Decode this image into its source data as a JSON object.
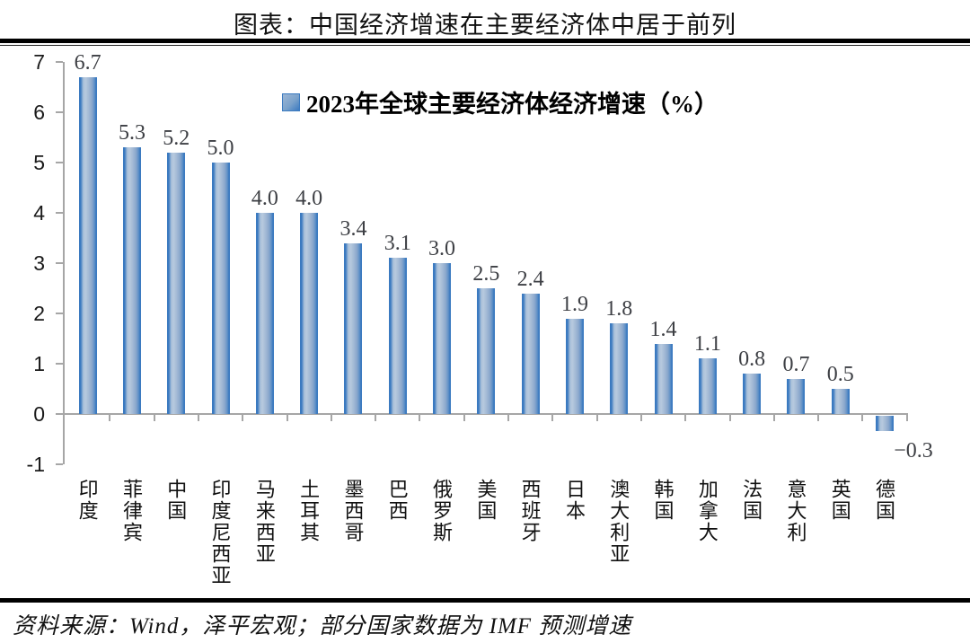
{
  "page": {
    "title": "图表：中国经济增速在主要经济体中居于前列",
    "footer": "资料来源：Wind，泽平宏观；部分国家数据为 IMF 预测增速"
  },
  "chart_data": {
    "type": "bar",
    "title": "图表：中国经济增速在主要经济体中居于前列",
    "legend": "2023年全球主要经济体经济增速（%）",
    "legend_position": "top-center",
    "categories": [
      "印度",
      "菲律宾",
      "中国",
      "印度尼西亚",
      "马来西亚",
      "土耳其",
      "墨西哥",
      "巴西",
      "俄罗斯",
      "美国",
      "西班牙",
      "日本",
      "澳大利亚",
      "韩国",
      "加拿大",
      "法国",
      "意大利",
      "英国",
      "德国"
    ],
    "values": [
      6.7,
      5.3,
      5.2,
      5.0,
      4.0,
      4.0,
      3.4,
      3.1,
      3.0,
      2.5,
      2.4,
      1.9,
      1.8,
      1.4,
      1.1,
      0.8,
      0.7,
      0.5,
      -0.3
    ],
    "value_labels": [
      "6.7",
      "5.3",
      "5.2",
      "5.0",
      "4.0",
      "4.0",
      "3.4",
      "3.1",
      "3.0",
      "2.5",
      "2.4",
      "1.9",
      "1.8",
      "1.4",
      "1.1",
      "0.8",
      "0.7",
      "0.5",
      "−0.3"
    ],
    "xlabel": "",
    "ylabel": "",
    "ylim": [
      -1,
      7
    ],
    "yticks": [
      7,
      6,
      5,
      4,
      3,
      2,
      1,
      0,
      -1
    ],
    "grid": false,
    "colors": {
      "bar_edge": "#3b7ac0",
      "bar_fill_light": "#b7c9de",
      "axis": "#a6a6a6",
      "value_label": "#3d3f44",
      "text": "#111111"
    },
    "source_note": "资料来源：Wind，泽平宏观；部分国家数据为 IMF 预测增速"
  }
}
